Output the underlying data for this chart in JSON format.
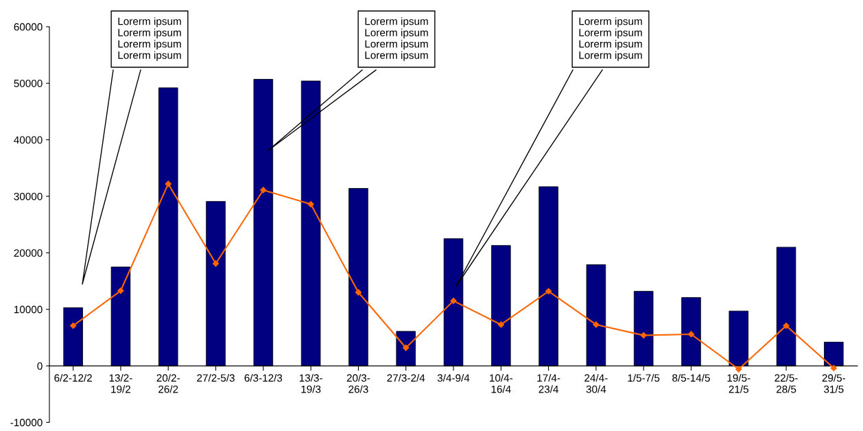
{
  "chart_data": {
    "type": "bar",
    "categories": [
      "6/2-12/2",
      "13/2-\n19/2",
      "20/2-\n26/2",
      "27/2-5/3",
      "6/3-12/3",
      "13/3-\n19/3",
      "20/3-\n26/3",
      "27/3-2/4",
      "3/4-9/4",
      "10/4-\n16/4",
      "17/4-\n23/4",
      "24/4-\n30/4",
      "1/5-7/5",
      "8/5-14/5",
      "19/5-\n21/5",
      "22/5-\n28/5",
      "29/5-\n31/5"
    ],
    "series": [
      {
        "color": "#000080",
        "values": [
          10300,
          17500,
          49200,
          29100,
          50700,
          50400,
          31400,
          6100,
          22500,
          21300,
          31700,
          17900,
          13200,
          12100,
          9700,
          21000,
          4200
        ]
      },
      {
        "type": "line",
        "color": "#ff6600",
        "marker": "diamond",
        "values": [
          7100,
          13300,
          32200,
          18100,
          31100,
          28600,
          13000,
          3200,
          11500,
          7300,
          13200,
          7300,
          5400,
          5600,
          -600,
          7100,
          -400
        ]
      }
    ],
    "ylim": [
      -10000,
      60000
    ],
    "yticks": [
      -10000,
      0,
      10000,
      20000,
      30000,
      40000,
      50000,
      60000
    ],
    "grid": false,
    "legend": false,
    "annotations": [
      "Lorerm ipsum\nLorerm ipsum\nLorerm ipsum\nLorerm ipsum",
      "Lorerm ipsum\nLorerm ipsum\nLorerm ipsum\nLorerm ipsum",
      "Lorerm ipsum\nLorerm ipsum\nLorerm ipsum\nLorerm ipsum"
    ]
  }
}
